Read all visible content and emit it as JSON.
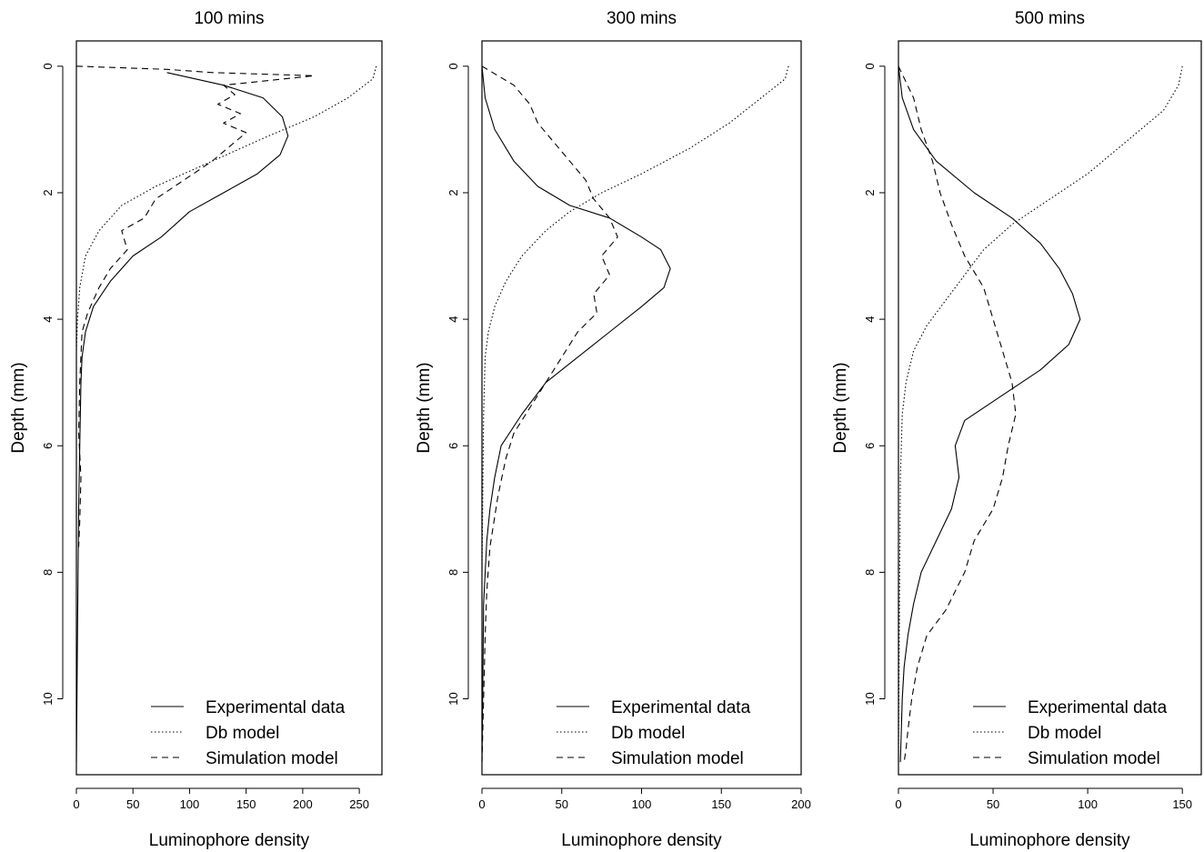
{
  "chart_data": [
    {
      "type": "line",
      "title": "100 mins",
      "xlabel": "Luminophore density",
      "ylabel": "Depth (mm)",
      "xlim": [
        0,
        270
      ],
      "ylim": [
        11.2,
        -0.4
      ],
      "x_ticks": [
        0,
        50,
        100,
        150,
        200,
        250
      ],
      "y_ticks": [
        0,
        2,
        4,
        6,
        8,
        10
      ],
      "legend_position": "bottom-right",
      "series": [
        {
          "name": "Experimental data",
          "style": "solid",
          "x": [
            80,
            130,
            165,
            182,
            187,
            180,
            160,
            130,
            100,
            75,
            50,
            30,
            15,
            8,
            5,
            4,
            3,
            2,
            1,
            0
          ],
          "y": [
            0.1,
            0.3,
            0.5,
            0.8,
            1.1,
            1.4,
            1.7,
            2.0,
            2.3,
            2.7,
            3.0,
            3.4,
            3.8,
            4.2,
            4.6,
            5.0,
            6.0,
            7.0,
            9.0,
            11.0
          ]
        },
        {
          "name": "Db model",
          "style": "dotted",
          "x": [
            265,
            262,
            240,
            210,
            170,
            120,
            70,
            40,
            20,
            8,
            3,
            1,
            0
          ],
          "y": [
            0.0,
            0.2,
            0.5,
            0.8,
            1.1,
            1.5,
            1.9,
            2.2,
            2.6,
            3.0,
            3.5,
            4.0,
            4.5
          ]
        },
        {
          "name": "Simulation model",
          "style": "dashed",
          "x": [
            0,
            80,
            120,
            210,
            130,
            140,
            125,
            145,
            130,
            150,
            140,
            120,
            95,
            70,
            60,
            40,
            45,
            30,
            20,
            10,
            5,
            3,
            2,
            4,
            3,
            2
          ],
          "y": [
            0.0,
            0.05,
            0.1,
            0.15,
            0.3,
            0.45,
            0.6,
            0.75,
            0.9,
            1.05,
            1.2,
            1.5,
            1.8,
            2.1,
            2.4,
            2.6,
            2.9,
            3.2,
            3.5,
            3.9,
            4.2,
            5.0,
            5.8,
            6.5,
            7.2,
            7.6
          ]
        }
      ]
    },
    {
      "type": "line",
      "title": "300 mins",
      "xlabel": "Luminophore density",
      "ylabel": "Depth (mm)",
      "xlim": [
        0,
        200
      ],
      "ylim": [
        11.2,
        -0.4
      ],
      "x_ticks": [
        0,
        50,
        100,
        150,
        200
      ],
      "y_ticks": [
        0,
        2,
        4,
        6,
        8,
        10
      ],
      "legend_position": "bottom-right",
      "series": [
        {
          "name": "Experimental data",
          "style": "solid",
          "x": [
            0,
            2,
            8,
            20,
            35,
            55,
            80,
            100,
            112,
            118,
            114,
            100,
            80,
            60,
            40,
            25,
            12,
            8,
            5,
            3,
            1,
            0
          ],
          "y": [
            0.0,
            0.5,
            1.0,
            1.5,
            1.9,
            2.2,
            2.4,
            2.7,
            2.9,
            3.2,
            3.5,
            3.8,
            4.2,
            4.6,
            5.0,
            5.5,
            6.0,
            6.5,
            7.0,
            7.5,
            8.5,
            11.0
          ]
        },
        {
          "name": "Db model",
          "style": "dotted",
          "x": [
            192,
            190,
            175,
            155,
            130,
            100,
            75,
            55,
            40,
            25,
            15,
            8,
            4,
            2,
            1,
            0
          ],
          "y": [
            0.0,
            0.2,
            0.5,
            0.9,
            1.3,
            1.7,
            2.0,
            2.3,
            2.6,
            3.0,
            3.4,
            3.8,
            4.2,
            4.6,
            5.5,
            8.0
          ]
        },
        {
          "name": "Simulation model",
          "style": "dashed",
          "x": [
            0,
            20,
            30,
            35,
            45,
            55,
            65,
            70,
            80,
            85,
            75,
            80,
            70,
            72,
            60,
            50,
            40,
            30,
            20,
            15,
            10,
            5,
            3,
            2,
            1,
            0
          ],
          "y": [
            0.0,
            0.3,
            0.6,
            0.9,
            1.2,
            1.5,
            1.8,
            2.1,
            2.4,
            2.7,
            3.0,
            3.3,
            3.6,
            3.9,
            4.2,
            4.6,
            5.0,
            5.4,
            5.8,
            6.2,
            6.8,
            7.6,
            8.3,
            9.0,
            10.0,
            11.0
          ]
        }
      ]
    },
    {
      "type": "line",
      "title": "500 mins",
      "xlabel": "Luminophore density",
      "ylabel": "Depth (mm)",
      "xlim": [
        0,
        160
      ],
      "ylim": [
        11.2,
        -0.4
      ],
      "x_ticks": [
        0,
        50,
        100,
        150
      ],
      "y_ticks": [
        0,
        2,
        4,
        6,
        8,
        10
      ],
      "legend_position": "bottom-right",
      "series": [
        {
          "name": "Experimental data",
          "style": "solid",
          "x": [
            0,
            2,
            8,
            20,
            40,
            60,
            75,
            85,
            92,
            96,
            90,
            75,
            55,
            35,
            30,
            32,
            28,
            20,
            12,
            8,
            5,
            3,
            2,
            1
          ],
          "y": [
            0.0,
            0.5,
            1.0,
            1.5,
            2.0,
            2.4,
            2.8,
            3.2,
            3.6,
            4.0,
            4.4,
            4.8,
            5.2,
            5.6,
            6.0,
            6.5,
            7.0,
            7.5,
            8.0,
            8.5,
            9.0,
            9.5,
            10.0,
            11.0
          ]
        },
        {
          "name": "Db model",
          "style": "dotted",
          "x": [
            150,
            148,
            140,
            120,
            100,
            80,
            60,
            45,
            35,
            25,
            15,
            8,
            4,
            2,
            1,
            0
          ],
          "y": [
            0.0,
            0.3,
            0.7,
            1.2,
            1.7,
            2.1,
            2.5,
            2.9,
            3.3,
            3.7,
            4.1,
            4.5,
            5.0,
            5.5,
            6.5,
            11.0
          ]
        },
        {
          "name": "Simulation model",
          "style": "dashed",
          "x": [
            0,
            8,
            12,
            18,
            22,
            28,
            35,
            45,
            50,
            55,
            60,
            62,
            58,
            55,
            50,
            40,
            35,
            30,
            25,
            15,
            10,
            7,
            5,
            4,
            3
          ],
          "y": [
            0.0,
            0.5,
            1.0,
            1.5,
            2.0,
            2.5,
            3.0,
            3.5,
            4.0,
            4.5,
            5.0,
            5.5,
            6.0,
            6.5,
            7.0,
            7.5,
            8.0,
            8.3,
            8.6,
            9.0,
            9.5,
            10.0,
            10.5,
            10.8,
            11.0
          ]
        }
      ]
    }
  ]
}
